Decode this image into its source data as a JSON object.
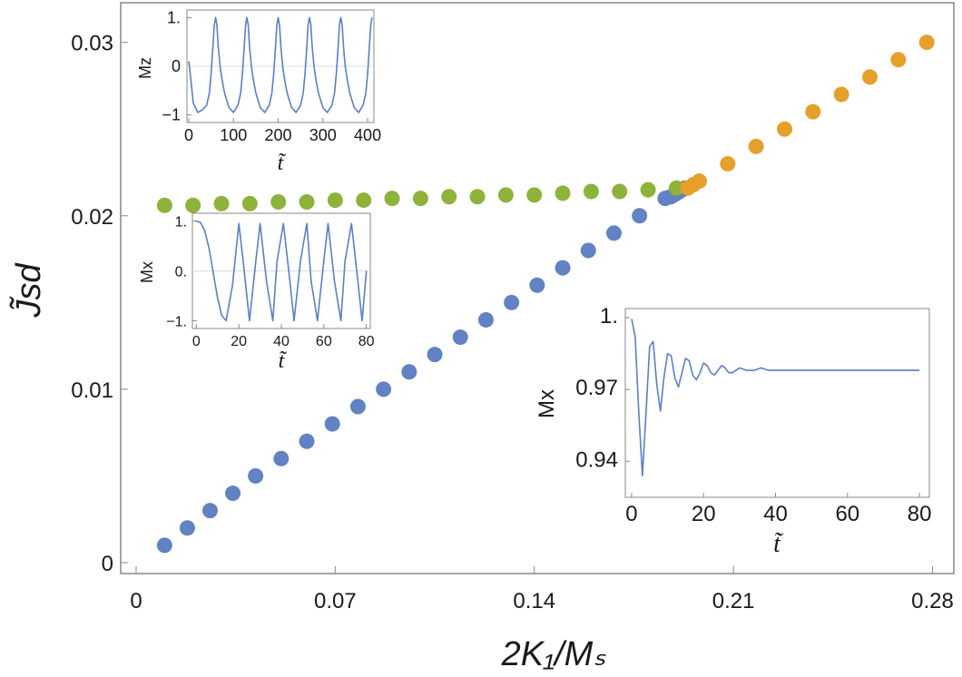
{
  "chart_data": [
    {
      "type": "scatter",
      "title": "",
      "xlabel": "2K₁/Mₛ",
      "ylabel": "J̃sd",
      "xlim": [
        0,
        0.284
      ],
      "ylim": [
        0,
        0.0315
      ],
      "xticks": [
        0,
        0.07,
        0.14,
        0.21,
        0.28
      ],
      "xtick_labels": [
        "0",
        "0.07",
        "0.14",
        "0.21",
        "0.28"
      ],
      "yticks": [
        0,
        0.01,
        0.02,
        0.03
      ],
      "ytick_labels": [
        "0",
        "0.01",
        "0.02",
        "0.03"
      ],
      "grid": false,
      "legend": "none",
      "series": [
        {
          "color": "#6182c3",
          "points": [
            [
              0.01,
              0.001
            ],
            [
              0.018,
              0.002
            ],
            [
              0.026,
              0.003
            ],
            [
              0.034,
              0.004
            ],
            [
              0.042,
              0.005
            ],
            [
              0.051,
              0.006
            ],
            [
              0.06,
              0.007
            ],
            [
              0.069,
              0.008
            ],
            [
              0.078,
              0.009
            ],
            [
              0.087,
              0.01
            ],
            [
              0.096,
              0.011
            ],
            [
              0.105,
              0.012
            ],
            [
              0.114,
              0.013
            ],
            [
              0.123,
              0.014
            ],
            [
              0.132,
              0.015
            ],
            [
              0.141,
              0.016
            ],
            [
              0.15,
              0.017
            ],
            [
              0.159,
              0.018
            ],
            [
              0.168,
              0.019
            ],
            [
              0.177,
              0.02
            ],
            [
              0.186,
              0.021
            ],
            [
              0.188,
              0.0211
            ],
            [
              0.189,
              0.0212
            ],
            [
              0.19,
              0.0213
            ],
            [
              0.191,
              0.0214
            ],
            [
              0.192,
              0.0215
            ],
            [
              0.193,
              0.0216
            ]
          ]
        },
        {
          "color": "#8db33b",
          "points": [
            [
              0.01,
              0.0206
            ],
            [
              0.02,
              0.0206
            ],
            [
              0.03,
              0.0207
            ],
            [
              0.04,
              0.0207
            ],
            [
              0.05,
              0.0208
            ],
            [
              0.06,
              0.0208
            ],
            [
              0.07,
              0.0209
            ],
            [
              0.08,
              0.0209
            ],
            [
              0.09,
              0.021
            ],
            [
              0.1,
              0.021
            ],
            [
              0.11,
              0.0211
            ],
            [
              0.12,
              0.0211
            ],
            [
              0.13,
              0.0212
            ],
            [
              0.14,
              0.0212
            ],
            [
              0.15,
              0.0213
            ],
            [
              0.16,
              0.0214
            ],
            [
              0.17,
              0.0214
            ],
            [
              0.18,
              0.0215
            ],
            [
              0.19,
              0.0216
            ]
          ]
        },
        {
          "color": "#e69f2b",
          "points": [
            [
              0.194,
              0.0216
            ],
            [
              0.196,
              0.0218
            ],
            [
              0.198,
              0.022
            ],
            [
              0.208,
              0.023
            ],
            [
              0.218,
              0.024
            ],
            [
              0.228,
              0.025
            ],
            [
              0.238,
              0.026
            ],
            [
              0.248,
              0.027
            ],
            [
              0.258,
              0.028
            ],
            [
              0.268,
              0.029
            ],
            [
              0.278,
              0.03
            ]
          ]
        }
      ]
    },
    {
      "type": "line",
      "title": "",
      "xlabel": "t̃",
      "ylabel": "Mz",
      "xlim": [
        0,
        410
      ],
      "ylim": [
        -1.12,
        1.12
      ],
      "xticks": [
        0,
        100,
        200,
        300,
        400
      ],
      "xtick_labels": [
        "0",
        "100",
        "200",
        "300",
        "400"
      ],
      "yticks": [
        -1,
        0,
        1
      ],
      "ytick_labels": [
        "−1",
        "0",
        "1."
      ],
      "color": "#5b7fc7",
      "period": 64,
      "x": [
        0,
        2,
        6,
        10,
        20,
        30,
        40,
        46,
        50,
        54,
        57,
        60,
        63,
        66,
        70,
        74,
        80,
        90,
        100,
        110,
        116,
        120,
        124,
        127,
        130,
        133,
        136,
        140,
        144,
        150,
        160,
        170,
        180,
        186,
        190,
        194,
        197,
        200,
        203,
        206,
        210,
        214,
        220,
        230,
        240,
        250,
        256,
        260,
        264,
        267,
        270,
        273,
        276,
        280,
        284,
        290,
        300,
        310,
        320,
        326,
        330,
        334,
        337,
        340,
        343,
        346,
        350,
        354,
        360,
        370,
        380,
        390,
        396,
        400,
        404,
        407,
        410
      ],
      "y": [
        0.1,
        -0.05,
        -0.4,
        -0.75,
        -0.95,
        -0.9,
        -0.8,
        -0.55,
        -0.15,
        0.4,
        0.85,
        1.0,
        0.85,
        0.4,
        0.0,
        -0.25,
        -0.55,
        -0.85,
        -0.95,
        -0.8,
        -0.55,
        -0.15,
        0.4,
        0.85,
        1.0,
        0.85,
        0.4,
        0.0,
        -0.25,
        -0.55,
        -0.85,
        -0.95,
        -0.8,
        -0.55,
        -0.15,
        0.4,
        0.85,
        1.0,
        0.85,
        0.4,
        0.0,
        -0.25,
        -0.55,
        -0.85,
        -0.95,
        -0.8,
        -0.55,
        -0.15,
        0.4,
        0.85,
        1.0,
        0.85,
        0.4,
        0.0,
        -0.25,
        -0.55,
        -0.85,
        -0.95,
        -0.8,
        -0.55,
        -0.15,
        0.4,
        0.85,
        1.0,
        0.85,
        0.4,
        0.0,
        -0.25,
        -0.55,
        -0.85,
        -0.95,
        -0.8,
        -0.55,
        -0.15,
        0.4,
        0.85,
        1.0
      ]
    },
    {
      "type": "line",
      "title": "",
      "xlabel": "t̃",
      "ylabel": "Mx",
      "xlim": [
        -1,
        81
      ],
      "ylim": [
        -1.12,
        1.12
      ],
      "xticks": [
        0,
        20,
        40,
        60,
        80
      ],
      "xtick_labels": [
        "0",
        "20",
        "40",
        "60",
        "80"
      ],
      "yticks": [
        -1,
        0,
        1
      ],
      "ytick_labels": [
        "−1.",
        "0.",
        "1."
      ],
      "color": "#5b7fc7",
      "x": [
        0,
        2,
        4,
        6,
        8,
        10,
        12,
        14,
        17,
        20,
        22,
        25,
        28,
        30,
        33,
        36,
        38,
        41,
        44,
        46,
        49,
        52,
        54,
        57,
        60,
        62,
        65,
        68,
        70,
        73,
        76,
        78,
        80
      ],
      "y": [
        1.0,
        0.97,
        0.8,
        0.45,
        -0.05,
        -0.55,
        -0.9,
        -1.0,
        -0.3,
        0.95,
        0.2,
        -1.0,
        0.2,
        0.95,
        -0.2,
        -1.0,
        0.2,
        0.95,
        -0.2,
        -1.0,
        0.2,
        0.95,
        -0.2,
        -1.0,
        0.2,
        0.95,
        -0.2,
        -1.0,
        0.2,
        0.95,
        -0.2,
        -1.0,
        0.0
      ]
    },
    {
      "type": "line",
      "title": "",
      "xlabel": "t̃",
      "ylabel": "Mx",
      "xlim": [
        -1,
        82
      ],
      "ylim": [
        0.928,
        1.0
      ],
      "xticks": [
        0,
        20,
        40,
        60,
        80
      ],
      "xtick_labels": [
        "0",
        "20",
        "40",
        "60",
        "80"
      ],
      "yticks": [
        0.94,
        0.97,
        1.0
      ],
      "ytick_labels": [
        "0.94",
        "0.97",
        "1."
      ],
      "color": "#5b7fc7",
      "x": [
        0,
        1,
        2,
        3,
        4,
        5,
        6,
        7,
        8,
        9,
        10,
        11,
        12,
        13,
        14,
        15,
        16,
        17,
        18,
        19,
        20,
        21,
        22,
        23,
        24,
        25,
        26,
        27,
        28,
        30,
        32,
        34,
        36,
        38,
        40,
        45,
        50,
        60,
        70,
        80
      ],
      "y": [
        0.9995,
        0.992,
        0.96,
        0.934,
        0.96,
        0.988,
        0.99,
        0.972,
        0.961,
        0.975,
        0.985,
        0.984,
        0.975,
        0.971,
        0.977,
        0.983,
        0.982,
        0.976,
        0.974,
        0.977,
        0.981,
        0.98,
        0.977,
        0.976,
        0.978,
        0.98,
        0.979,
        0.977,
        0.977,
        0.979,
        0.978,
        0.978,
        0.979,
        0.978,
        0.978,
        0.978,
        0.978,
        0.978,
        0.978,
        0.978
      ]
    }
  ]
}
